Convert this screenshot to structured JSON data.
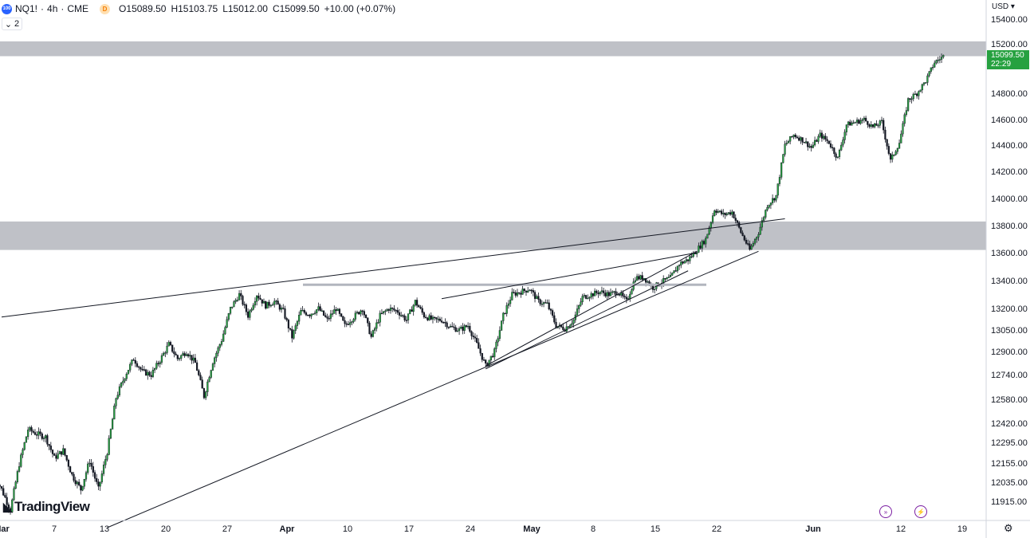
{
  "header": {
    "symbol_badge": "100",
    "symbol": "NQ1!",
    "interval": "4h",
    "exchange": "CME",
    "delay_badge": "D",
    "open_key": "O",
    "open_val": "15089.50",
    "high_key": "H",
    "high_val": "15103.75",
    "low_key": "L",
    "low_val": "15012.00",
    "close_key": "C",
    "close_val": "15099.50",
    "change": "+10.00 (+0.07%)",
    "indicator_count": "2"
  },
  "price_axis": {
    "currency": "USD",
    "tag_price": "15099.50",
    "tag_time": "22:29",
    "tag_color": "#26a140"
  },
  "branding": {
    "logo_text": "TradingView"
  },
  "colors": {
    "up": "#26a140",
    "down": "#131722",
    "zone": "#9598a1"
  },
  "chart_data": {
    "type": "candlestick",
    "interval": "4h",
    "y_axis": {
      "ticks": [
        15400,
        15200,
        14800,
        14600,
        14400,
        14200,
        14000,
        13800,
        13600,
        13400,
        13200,
        13050,
        12900,
        12740,
        12580,
        12420,
        12295,
        12155,
        12035,
        11915
      ]
    },
    "x_axis": {
      "ticks": [
        "Mar",
        "7",
        "13",
        "20",
        "27",
        "Apr",
        "10",
        "17",
        "24",
        "May",
        "8",
        "15",
        "22",
        "Jun",
        "12",
        "19"
      ]
    },
    "last_price": 15099.5,
    "zones": [
      {
        "from": 15100,
        "to": 15220
      },
      {
        "from": 13620,
        "to": 13830
      }
    ],
    "horizontal_level": 13370,
    "trendlines": [
      {
        "from": [
          "Mar 1",
          13140
        ],
        "to": [
          "May 29",
          13850
        ]
      },
      {
        "from": [
          "Mar 13",
          11750
        ],
        "to": [
          "May 26",
          13610
        ]
      },
      {
        "from": [
          "Apr 25",
          12780
        ],
        "to": [
          "May 18",
          13470
        ]
      },
      {
        "from": [
          "Apr 25",
          12800
        ],
        "to": [
          "May 19",
          13610
        ]
      },
      {
        "from": [
          "Apr 20",
          13270
        ],
        "to": [
          "May 19",
          13600
        ]
      }
    ],
    "path": [
      [
        "Feb 28",
        12100
      ],
      [
        "Mar 1",
        11990
      ],
      [
        "Mar 2",
        11860
      ],
      [
        "Mar 3",
        12150
      ],
      [
        "Mar 4",
        12380
      ],
      [
        "Mar 5",
        12350
      ],
      [
        "Mar 6",
        12330
      ],
      [
        "Mar 7",
        12190
      ],
      [
        "Mar 8",
        12240
      ],
      [
        "Mar 9",
        12080
      ],
      [
        "Mar 10",
        11990
      ],
      [
        "Mar 11",
        12170
      ],
      [
        "Mar 12",
        11990
      ],
      [
        "Mar 13",
        12230
      ],
      [
        "Mar 14",
        12590
      ],
      [
        "Mar 15",
        12730
      ],
      [
        "Mar 16",
        12850
      ],
      [
        "Mar 17",
        12760
      ],
      [
        "Mar 18",
        12740
      ],
      [
        "Mar 19",
        12840
      ],
      [
        "Mar 20",
        12950
      ],
      [
        "Mar 21",
        12850
      ],
      [
        "Mar 22",
        12900
      ],
      [
        "Mar 23",
        12820
      ],
      [
        "Mar 24",
        12600
      ],
      [
        "Mar 25",
        12830
      ],
      [
        "Mar 26",
        12980
      ],
      [
        "Mar 27",
        13200
      ],
      [
        "Mar 28",
        13300
      ],
      [
        "Mar 29",
        13150
      ],
      [
        "Mar 30",
        13300
      ],
      [
        "Mar 31",
        13220
      ],
      [
        "Apr 1",
        13250
      ],
      [
        "Apr 2",
        13180
      ],
      [
        "Apr 3",
        13000
      ],
      [
        "Apr 4",
        13180
      ],
      [
        "Apr 5",
        13160
      ],
      [
        "Apr 6",
        13200
      ],
      [
        "Apr 7",
        13120
      ],
      [
        "Apr 8",
        13200
      ],
      [
        "Apr 9",
        13080
      ],
      [
        "Apr 10",
        13140
      ],
      [
        "Apr 11",
        13200
      ],
      [
        "Apr 12",
        13000
      ],
      [
        "Apr 13",
        13150
      ],
      [
        "Apr 14",
        13200
      ],
      [
        "Apr 15",
        13180
      ],
      [
        "Apr 16",
        13120
      ],
      [
        "Apr 17",
        13250
      ],
      [
        "Apr 18",
        13150
      ],
      [
        "Apr 19",
        13120
      ],
      [
        "Apr 20",
        13120
      ],
      [
        "Apr 21",
        13070
      ],
      [
        "Apr 22",
        13050
      ],
      [
        "Apr 23",
        13080
      ],
      [
        "Apr 24",
        12950
      ],
      [
        "Apr 25",
        12800
      ],
      [
        "Apr 26",
        12900
      ],
      [
        "Apr 27",
        13150
      ],
      [
        "Apr 28",
        13300
      ],
      [
        "Apr 29",
        13320
      ],
      [
        "Apr 30",
        13340
      ],
      [
        "May 1",
        13250
      ],
      [
        "May 2",
        13230
      ],
      [
        "May 3",
        13080
      ],
      [
        "May 4",
        13060
      ],
      [
        "May 5",
        13120
      ],
      [
        "May 6",
        13280
      ],
      [
        "May 7",
        13300
      ],
      [
        "May 8",
        13320
      ],
      [
        "May 9",
        13300
      ],
      [
        "May 10",
        13320
      ],
      [
        "May 11",
        13250
      ],
      [
        "May 12",
        13420
      ],
      [
        "May 13",
        13420
      ],
      [
        "May 14",
        13350
      ],
      [
        "May 15",
        13390
      ],
      [
        "May 16",
        13420
      ],
      [
        "May 17",
        13520
      ],
      [
        "May 18",
        13550
      ],
      [
        "May 19",
        13620
      ],
      [
        "May 20",
        13700
      ],
      [
        "May 21",
        13920
      ],
      [
        "May 22",
        13880
      ],
      [
        "May 23",
        13900
      ],
      [
        "May 24",
        13750
      ],
      [
        "May 25",
        13620
      ],
      [
        "May 26",
        13750
      ],
      [
        "May 27",
        13950
      ],
      [
        "May 28",
        14020
      ],
      [
        "May 29",
        14400
      ],
      [
        "May 30",
        14480
      ],
      [
        "May 31",
        14440
      ],
      [
        "Jun 1",
        14380
      ],
      [
        "Jun 2",
        14480
      ],
      [
        "Jun 3",
        14420
      ],
      [
        "Jun 4",
        14300
      ],
      [
        "Jun 5",
        14560
      ],
      [
        "Jun 6",
        14580
      ],
      [
        "Jun 7",
        14600
      ],
      [
        "Jun 8",
        14540
      ],
      [
        "Jun 9",
        14580
      ],
      [
        "Jun 10",
        14280
      ],
      [
        "Jun 11",
        14420
      ],
      [
        "Jun 12",
        14750
      ],
      [
        "Jun 13",
        14800
      ],
      [
        "Jun 14",
        14900
      ],
      [
        "Jun 15",
        15050
      ],
      [
        "Jun 16",
        15099.5
      ]
    ]
  }
}
